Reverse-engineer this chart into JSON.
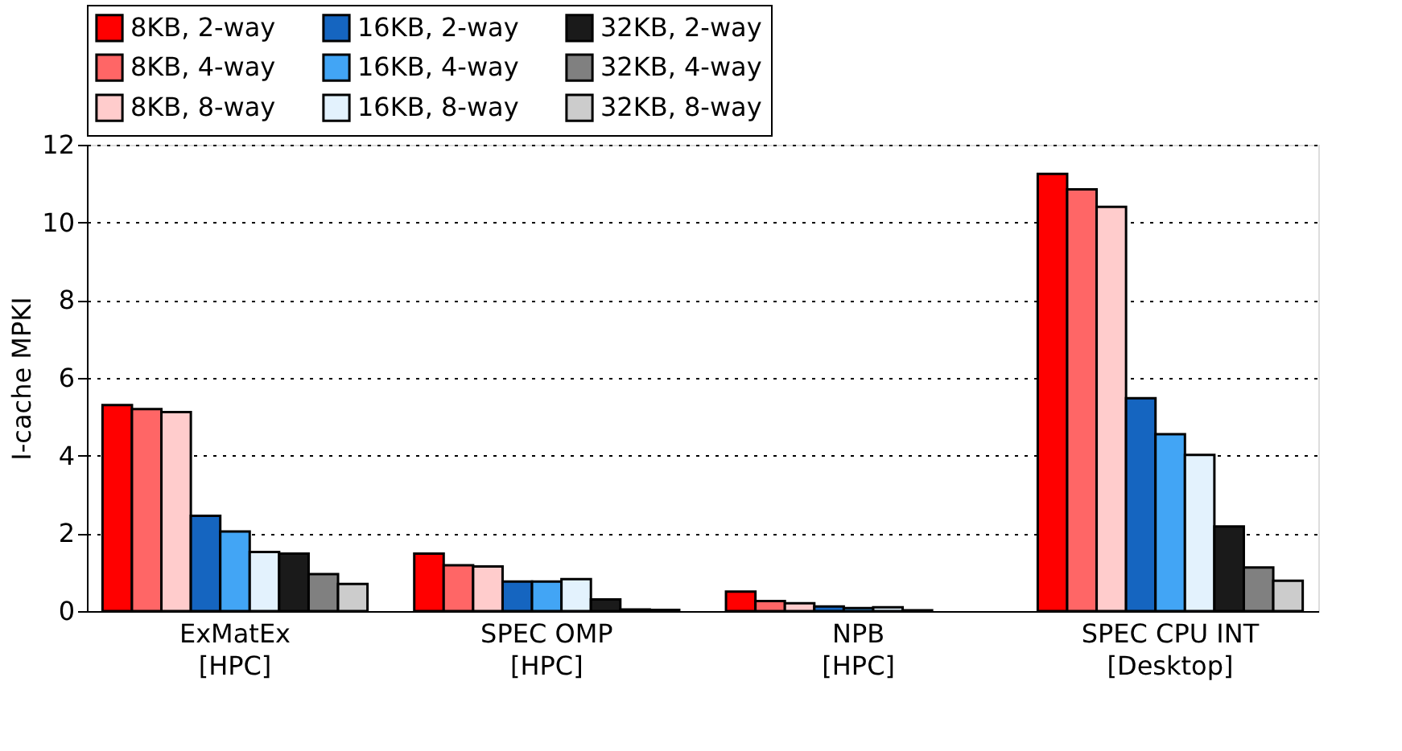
{
  "chart_data": {
    "type": "bar",
    "ylabel": "I-cache MPKI",
    "categories": [
      "ExMatEx\n[HPC]",
      "SPEC OMP\n[HPC]",
      "NPB\n[HPC]",
      "SPEC CPU INT\n[Desktop]"
    ],
    "series": [
      {
        "name": "8KB, 2-way",
        "color": "#ff0000",
        "values": [
          5.3,
          1.48,
          0.5,
          11.25
        ]
      },
      {
        "name": "8KB, 4-way",
        "color": "#ff6666",
        "values": [
          5.2,
          1.18,
          0.26,
          10.85
        ]
      },
      {
        "name": "8KB, 8-way",
        "color": "#ffcccc",
        "values": [
          5.12,
          1.15,
          0.2,
          10.4
        ]
      },
      {
        "name": "16KB, 2-way",
        "color": "#1565c0",
        "values": [
          2.45,
          0.76,
          0.12,
          5.48
        ]
      },
      {
        "name": "16KB, 4-way",
        "color": "#42a5f5",
        "values": [
          2.05,
          0.76,
          0.08,
          4.55
        ]
      },
      {
        "name": "16KB, 8-way",
        "color": "#e3f2fd",
        "values": [
          1.52,
          0.82,
          0.1,
          4.02
        ]
      },
      {
        "name": "32KB, 2-way",
        "color": "#1a1a1a",
        "values": [
          1.48,
          0.3,
          0.02,
          2.18
        ]
      },
      {
        "name": "32KB, 4-way",
        "color": "#808080",
        "values": [
          0.95,
          0.04,
          null,
          1.12
        ]
      },
      {
        "name": "32KB, 8-way",
        "color": "#cccccc",
        "values": [
          0.7,
          0.03,
          null,
          0.78
        ]
      }
    ],
    "ylim": [
      0,
      12
    ],
    "yticks": [
      0,
      2,
      4,
      6,
      8,
      10,
      12
    ],
    "grid": "y",
    "legend": "top"
  }
}
